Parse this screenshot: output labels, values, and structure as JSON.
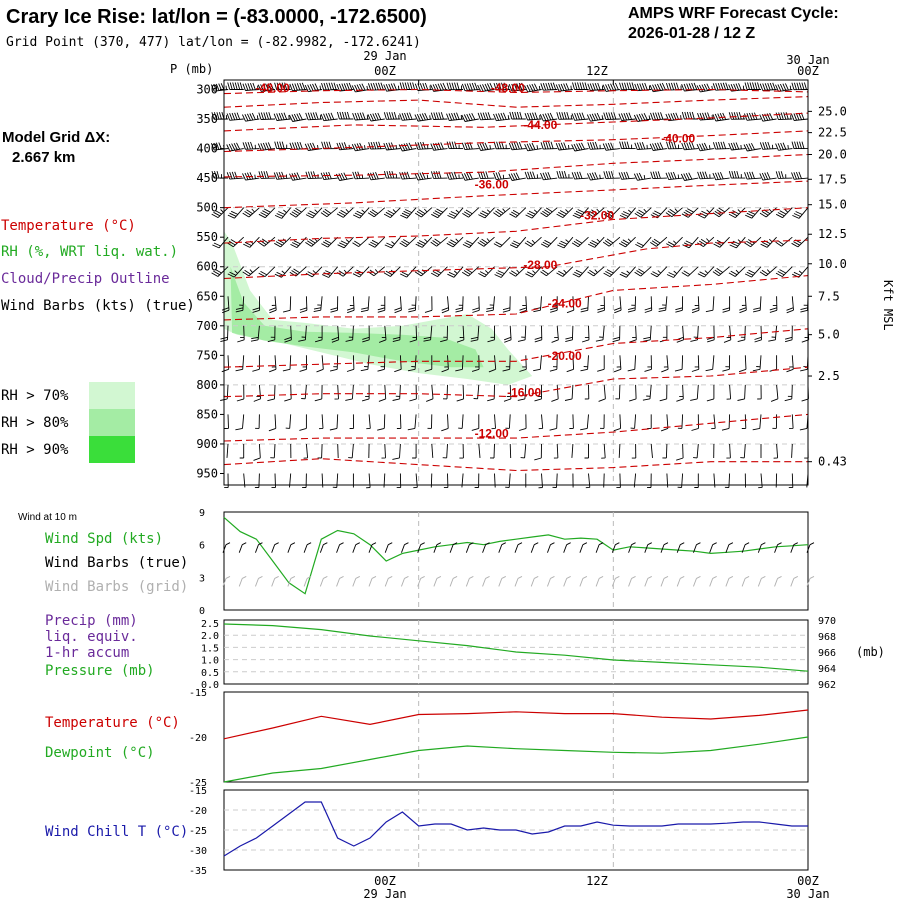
{
  "header": {
    "title": "Crary Ice Rise:  lat/lon = (-83.0000, -172.6500)",
    "grid_point": "Grid Point (370, 477) lat/lon = (-82.9982, -172.6241)",
    "cycle_line1": "AMPS WRF Forecast Cycle:",
    "cycle_line2": "2026-01-28 / 12  Z"
  },
  "time_axis": {
    "top_dates": [
      "29 Jan",
      "30 Jan"
    ],
    "hours": [
      "00Z",
      "12Z",
      "00Z"
    ],
    "bottom_dates": [
      "29 Jan",
      "30 Jan"
    ]
  },
  "model_grid": {
    "label": "Model Grid ΔX:",
    "value": "2.667 km"
  },
  "colors": {
    "temperature": "#cc0000",
    "rh": "#22aa22",
    "cloud": "#6a2a9a",
    "wind": "#000000",
    "grid_barbs": "#b0b0b0",
    "windchill": "#1a1aaa",
    "rh70": "#d2f7d2",
    "rh80": "#a4eca4",
    "rh90": "#3ade3a"
  },
  "chart_data": [
    {
      "type": "heatmap",
      "name": "cross-section",
      "p_label": "P (mb)",
      "p_levels": [
        300,
        350,
        400,
        450,
        500,
        550,
        600,
        650,
        700,
        750,
        800,
        850,
        900,
        950
      ],
      "right_label": "Kft MSL",
      "right_ticks": [
        "25.0",
        "22.5",
        "20.0",
        "17.5",
        "15.0",
        "12.5",
        "10.0",
        "7.5",
        "5.0",
        "2.5",
        "0.43"
      ],
      "right_tick_p": [
        337,
        373,
        410,
        452,
        495,
        545,
        595,
        650,
        715,
        785,
        930
      ],
      "legend": [
        "Temperature (°C)",
        "RH (%, WRT liq. wat.)",
        "Cloud/Precip Outline",
        "Wind Barbs (kts) (true)"
      ],
      "rh_legend": [
        "RH > 70%",
        "RH > 80%",
        "RH > 90%"
      ],
      "isotherms": [
        {
          "label": "-48.00",
          "t": 3,
          "p": 304
        },
        {
          "label": "-48.00",
          "t": 17.5,
          "p": 304
        },
        {
          "label": "-44.00",
          "t": 19.5,
          "p": 367
        },
        {
          "label": "-40.00",
          "t": 28,
          "p": 390
        },
        {
          "label": "-36.00",
          "t": 16.5,
          "p": 468
        },
        {
          "label": "-32.00",
          "t": 23,
          "p": 520
        },
        {
          "label": "-28.00",
          "t": 19.5,
          "p": 604
        },
        {
          "label": "-24.00",
          "t": 21,
          "p": 669
        },
        {
          "label": "-20.00",
          "t": 21,
          "p": 758
        },
        {
          "label": "-16.00",
          "t": 18.5,
          "p": 820
        },
        {
          "label": "-12.00",
          "t": 16.5,
          "p": 889
        }
      ]
    },
    {
      "type": "line",
      "name": "wind-speed",
      "title": "Wind at 10 m",
      "labels": [
        "Wind Spd (kts)",
        "Wind Barbs (true)",
        "Wind Barbs (grid)"
      ],
      "yticks": [
        "9",
        "6",
        "3",
        "0"
      ],
      "ylim": [
        0,
        9
      ],
      "x": [
        0,
        1,
        2,
        3,
        4,
        5,
        6,
        7,
        8,
        9,
        10,
        11,
        12,
        13,
        14,
        15,
        16,
        17,
        18,
        19,
        20,
        21,
        22,
        23,
        24,
        25,
        26,
        27,
        28,
        29,
        30,
        31,
        32,
        33,
        34,
        35,
        36
      ],
      "values": [
        8.5,
        7.2,
        6.5,
        4.5,
        2.5,
        1.5,
        6.5,
        7.3,
        7.0,
        6.0,
        4.5,
        5.2,
        5.5,
        5.8,
        6.0,
        6.2,
        6.0,
        6.3,
        6.5,
        6.7,
        6.9,
        6.5,
        6.6,
        6.5,
        5.5,
        5.8,
        5.7,
        5.6,
        5.5,
        5.4,
        5.2,
        5.3,
        5.4,
        5.6,
        5.8,
        5.9,
        6.0
      ]
    },
    {
      "type": "line",
      "name": "precip-pressure",
      "labels": [
        "Precip (mm)",
        "liq. equiv.",
        "1-hr accum",
        "Pressure (mb)"
      ],
      "left_ticks": [
        "2.5",
        "2.0",
        "1.5",
        "1.0",
        "0.5",
        "0.0"
      ],
      "right_ticks": [
        "970",
        "968",
        "966",
        "964",
        "962"
      ],
      "right_unit": "(mb)",
      "ylim": [
        962,
        970
      ],
      "x": [
        0,
        3,
        6,
        9,
        12,
        15,
        18,
        21,
        24,
        27,
        30,
        33,
        36
      ],
      "values": [
        969.5,
        969.3,
        968.8,
        968.0,
        967.4,
        966.8,
        966.0,
        965.6,
        965.0,
        964.7,
        964.4,
        964.1,
        963.6
      ]
    },
    {
      "type": "line",
      "name": "temp-dewpoint",
      "labels": [
        "Temperature (°C)",
        "Dewpoint (°C)"
      ],
      "yticks": [
        "-15",
        "-20",
        "-25"
      ],
      "ylim": [
        -25,
        -15
      ],
      "x": [
        0,
        3,
        6,
        9,
        12,
        15,
        18,
        21,
        24,
        27,
        30,
        33,
        36
      ],
      "series": [
        {
          "name": "Temperature",
          "values": [
            -20.2,
            -19.0,
            -17.7,
            -18.6,
            -17.5,
            -17.4,
            -17.2,
            -17.4,
            -17.4,
            -17.8,
            -18.0,
            -17.6,
            -17.0
          ]
        },
        {
          "name": "Dewpoint",
          "values": [
            -25.0,
            -24.0,
            -23.5,
            -22.5,
            -21.5,
            -21.0,
            -21.3,
            -21.5,
            -21.7,
            -21.8,
            -21.5,
            -20.8,
            -20.0
          ]
        }
      ]
    },
    {
      "type": "line",
      "name": "wind-chill",
      "labels": [
        "Wind Chill T (°C)"
      ],
      "yticks": [
        "-15",
        "-20",
        "-25",
        "-30",
        "-35"
      ],
      "ylim": [
        -35,
        -15
      ],
      "x": [
        0,
        1,
        2,
        3,
        4,
        5,
        6,
        7,
        8,
        9,
        10,
        11,
        12,
        13,
        14,
        15,
        16,
        17,
        18,
        19,
        20,
        21,
        22,
        23,
        24,
        25,
        26,
        27,
        28,
        29,
        30,
        31,
        32,
        33,
        34,
        35,
        36
      ],
      "values": [
        -31.5,
        -29.0,
        -27.0,
        -24.0,
        -21.0,
        -18.0,
        -18.0,
        -27.0,
        -29.0,
        -27.0,
        -23.0,
        -20.5,
        -24.0,
        -23.5,
        -23.5,
        -25.0,
        -24.5,
        -25.0,
        -25.0,
        -26.0,
        -25.5,
        -24.0,
        -24.0,
        -23.0,
        -23.8,
        -24.0,
        -24.0,
        -24.0,
        -23.5,
        -23.5,
        -23.5,
        -23.3,
        -23.0,
        -23.0,
        -23.5,
        -24.0,
        -24.0
      ]
    }
  ]
}
